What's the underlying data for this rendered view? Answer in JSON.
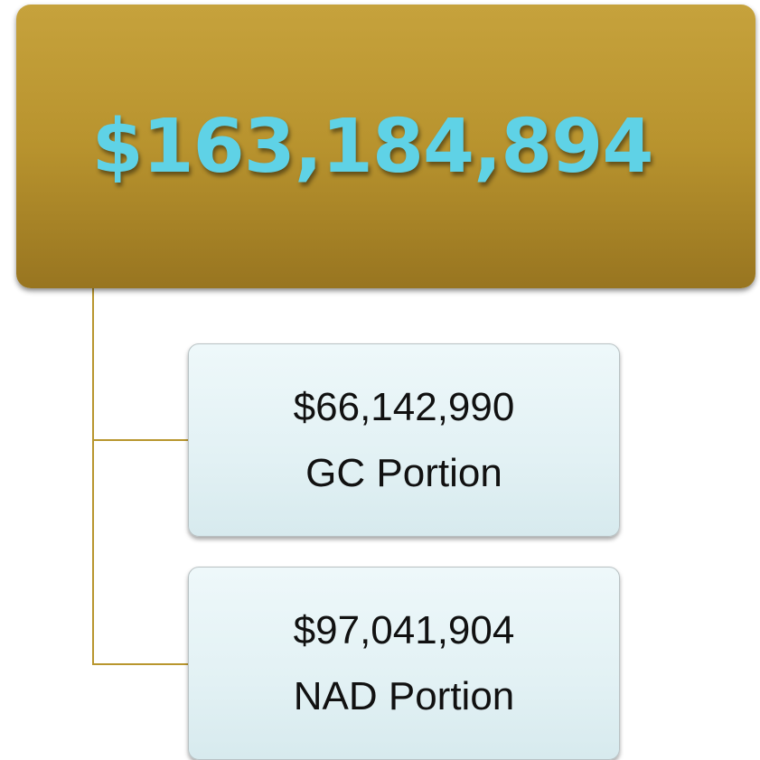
{
  "root": {
    "label": "$163,184,894"
  },
  "children": [
    {
      "amount": "$66,142,990",
      "label": "GC Portion"
    },
    {
      "amount": "$97,041,904",
      "label": "NAD Portion"
    }
  ]
}
